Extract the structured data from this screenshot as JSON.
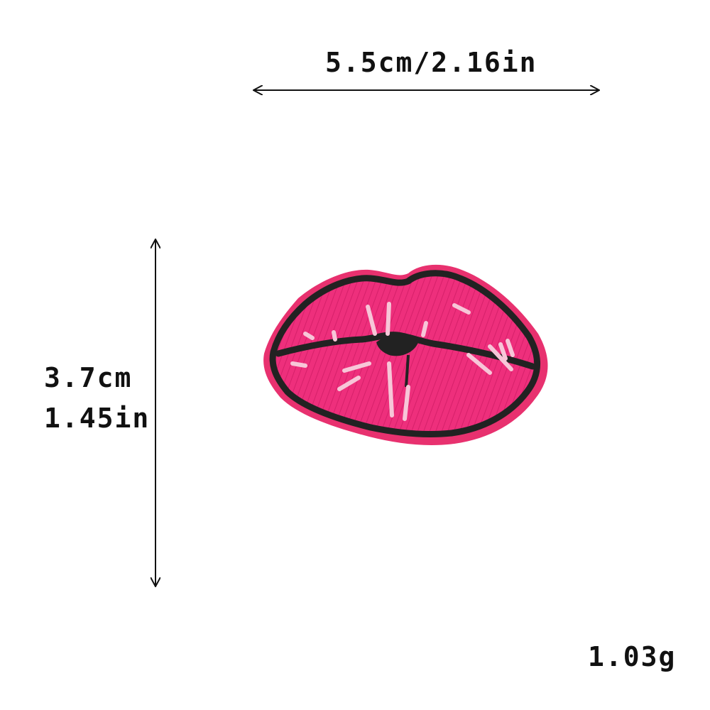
{
  "dimensions": {
    "width_label": "5.5cm/2.16in",
    "height_cm_label": "3.7cm",
    "height_in_label": "1.45in",
    "weight_label": "1.03g"
  },
  "product": {
    "name_icon": "lips-patch-icon",
    "colors": {
      "lip_fill": "#f0317f",
      "lip_border": "#e8316f",
      "outline": "#222222",
      "highlight": "#f7c6d8"
    }
  }
}
